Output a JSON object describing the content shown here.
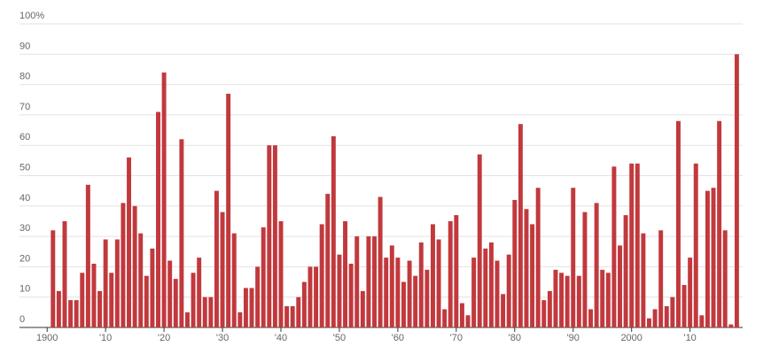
{
  "chart_data": {
    "type": "bar",
    "color": "#c1393d",
    "x": [
      1901,
      1902,
      1903,
      1904,
      1905,
      1906,
      1907,
      1908,
      1909,
      1910,
      1911,
      1912,
      1913,
      1914,
      1915,
      1916,
      1917,
      1918,
      1919,
      1920,
      1921,
      1922,
      1923,
      1924,
      1925,
      1926,
      1927,
      1928,
      1929,
      1930,
      1931,
      1932,
      1933,
      1934,
      1935,
      1936,
      1937,
      1938,
      1939,
      1940,
      1941,
      1942,
      1943,
      1944,
      1945,
      1946,
      1947,
      1948,
      1949,
      1950,
      1951,
      1952,
      1953,
      1954,
      1955,
      1956,
      1957,
      1958,
      1959,
      1960,
      1961,
      1962,
      1963,
      1964,
      1965,
      1966,
      1967,
      1968,
      1969,
      1970,
      1971,
      1972,
      1973,
      1974,
      1975,
      1976,
      1977,
      1978,
      1979,
      1980,
      1981,
      1982,
      1983,
      1984,
      1985,
      1986,
      1987,
      1988,
      1989,
      1990,
      1991,
      1992,
      1993,
      1994,
      1995,
      1996,
      1997,
      1998,
      1999,
      2000,
      2001,
      2002,
      2003,
      2004,
      2005,
      2006,
      2007,
      2008,
      2009,
      2010,
      2011,
      2012,
      2013,
      2014,
      2015,
      2016,
      2017,
      2018
    ],
    "values": [
      32,
      12,
      35,
      9,
      9,
      18,
      47,
      21,
      12,
      29,
      18,
      29,
      41,
      56,
      40,
      31,
      17,
      26,
      71,
      84,
      22,
      16,
      62,
      5,
      18,
      23,
      10,
      10,
      45,
      38,
      77,
      31,
      5,
      13,
      13,
      20,
      33,
      60,
      60,
      35,
      7,
      7,
      10,
      15,
      20,
      20,
      34,
      44,
      63,
      24,
      35,
      21,
      30,
      12,
      30,
      30,
      43,
      23,
      27,
      23,
      15,
      22,
      17,
      28,
      19,
      34,
      29,
      6,
      35,
      37,
      8,
      4,
      23,
      57,
      26,
      28,
      22,
      11,
      24,
      42,
      67,
      39,
      34,
      46,
      9,
      12,
      19,
      18,
      17,
      46,
      17,
      38,
      6,
      41,
      19,
      18,
      53,
      27,
      37,
      54,
      54,
      31,
      3,
      6,
      32,
      7,
      10,
      68,
      14,
      23,
      54,
      4,
      45,
      46,
      68,
      32,
      1,
      90
    ],
    "xlim": [
      1898,
      2019
    ],
    "xticks": [
      1900,
      {
        "value": 1910,
        "label": "'10"
      },
      {
        "value": 1920,
        "label": "'20"
      },
      {
        "value": 1930,
        "label": "'30"
      },
      {
        "value": 1940,
        "label": "'40"
      },
      {
        "value": 1950,
        "label": "'50"
      },
      {
        "value": 1960,
        "label": "'60"
      },
      {
        "value": 1970,
        "label": "'70"
      },
      {
        "value": 1980,
        "label": "'80"
      },
      {
        "value": 1990,
        "label": "'90"
      },
      2000,
      {
        "value": 2010,
        "label": "'10"
      }
    ],
    "ylim": [
      0,
      100
    ],
    "yticks": [
      0,
      10,
      20,
      30,
      40,
      50,
      60,
      70,
      80,
      90,
      {
        "value": 100,
        "label": "100%"
      }
    ],
    "grid": true
  }
}
